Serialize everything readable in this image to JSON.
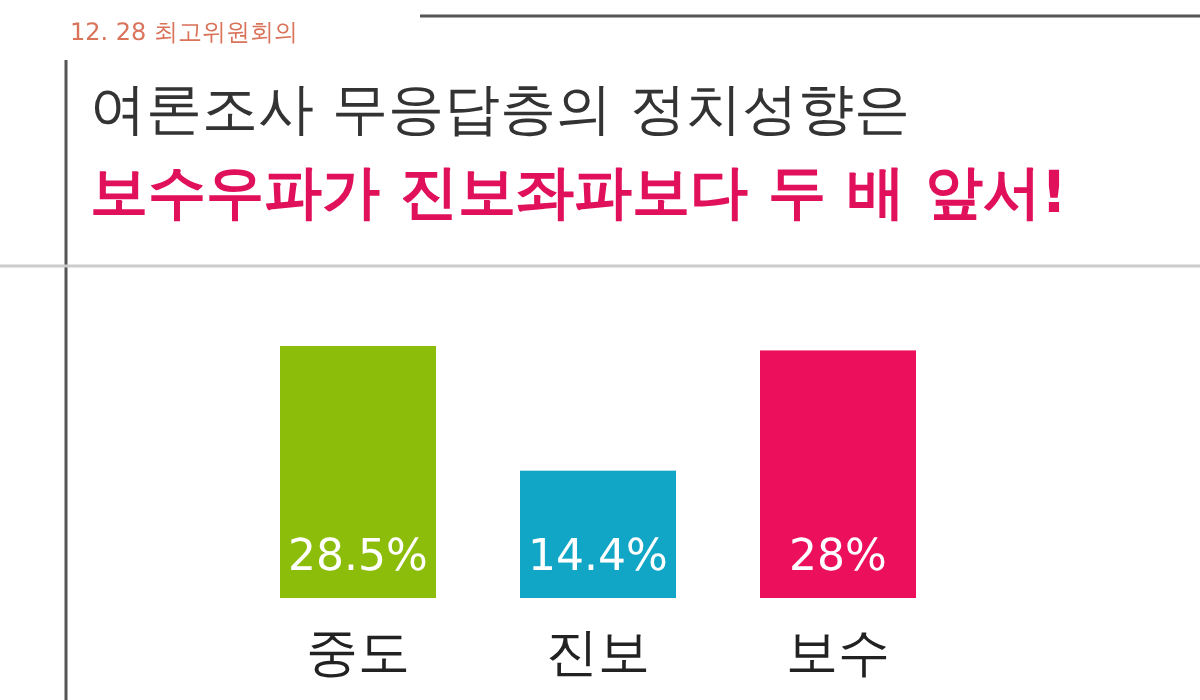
{
  "chart_data": {
    "type": "bar",
    "title": "여론조사 무응답층의 정치성향은",
    "subtitle": "보수우파가 진보좌파보다 두 배 앞서!",
    "annotations": [
      "12. 28 최고위원회의"
    ],
    "categories": [
      "중도",
      "진보",
      "보수"
    ],
    "values": [
      28.5,
      14.4,
      28
    ],
    "colors": [
      "#8cbd0b",
      "#12a6c6",
      "#ec0f5c"
    ],
    "value_labels": [
      "28.5%",
      "14.4%",
      "28%"
    ]
  }
}
